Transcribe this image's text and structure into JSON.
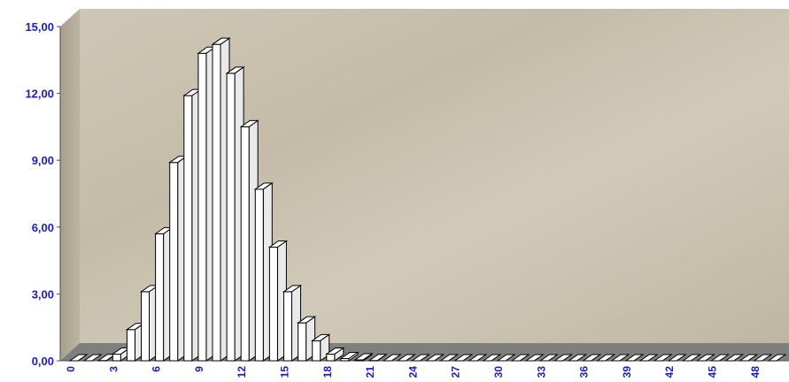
{
  "chart_data": {
    "type": "bar",
    "title": "",
    "xlabel": "",
    "ylabel": "",
    "ylim": [
      0,
      15
    ],
    "y_ticks": [
      "0,00",
      "3,00",
      "6,00",
      "9,00",
      "12,00",
      "15,00"
    ],
    "x_tick_labels": [
      "0",
      "3",
      "6",
      "9",
      "12",
      "15",
      "18",
      "21",
      "24",
      "27",
      "30",
      "33",
      "36",
      "39",
      "42",
      "45",
      "48"
    ],
    "categories": [
      0,
      1,
      2,
      3,
      4,
      5,
      6,
      7,
      8,
      9,
      10,
      11,
      12,
      13,
      14,
      15,
      16,
      17,
      18,
      19,
      20,
      21,
      22,
      23,
      24,
      25,
      26,
      27,
      28,
      29,
      30,
      31,
      32,
      33,
      34,
      35,
      36,
      37,
      38,
      39,
      40,
      41,
      42,
      43,
      44,
      45,
      46,
      47,
      48,
      49
    ],
    "values": [
      0.0,
      0.0,
      0.01,
      0.3,
      1.4,
      3.1,
      5.7,
      8.9,
      11.9,
      13.8,
      14.2,
      12.9,
      10.5,
      7.7,
      5.1,
      3.1,
      1.7,
      0.9,
      0.3,
      0.1,
      0.04,
      0.01,
      0,
      0,
      0,
      0,
      0,
      0,
      0,
      0,
      0,
      0,
      0,
      0,
      0,
      0,
      0,
      0,
      0,
      0,
      0,
      0,
      0,
      0,
      0,
      0,
      0,
      0,
      0,
      0
    ],
    "grid": false,
    "legend": "none",
    "colors": {
      "bar": "#ffffff",
      "bar_outline": "#000000",
      "wall": "#c8bfad",
      "floor": "#7f7f7f",
      "tick_text": "#1a1ad6"
    }
  }
}
